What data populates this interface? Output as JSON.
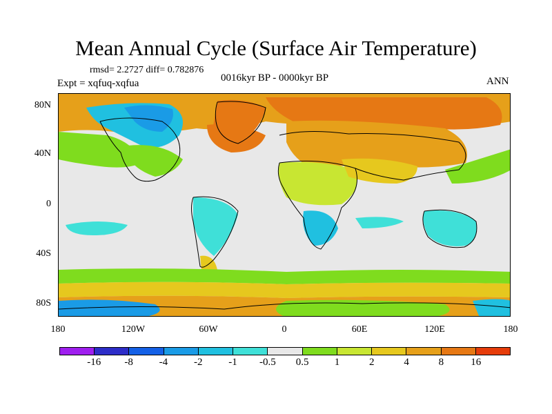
{
  "title": "Mean Annual Cycle (Surface Air Temperature)",
  "stats": "rmsd= 2.2727 diff= 0.782876",
  "experiment": "Expt = xqfuq-xqfua",
  "period": "0016kyr BP - 0000kyr BP",
  "season": "ANN",
  "axes": {
    "y_ticks": [
      "80N",
      "40N",
      "0",
      "40S",
      "80S"
    ],
    "x_ticks": [
      "180",
      "120W",
      "60W",
      "0",
      "60E",
      "120E",
      "180"
    ]
  },
  "colorbar": {
    "colors": [
      "#9f1fef",
      "#2d2dc8",
      "#1460e6",
      "#1a9be6",
      "#20c0e0",
      "#3fe0d8",
      "#e8e8e8",
      "#7fdc1e",
      "#c8e632",
      "#e6c81e",
      "#e6a01a",
      "#e67814",
      "#e63c0a"
    ],
    "labels": [
      "-16",
      "-8",
      "-4",
      "-2",
      "-1",
      "-0.5",
      "0.5",
      "1",
      "2",
      "4",
      "8",
      "16"
    ]
  },
  "map_colors": {
    "neutral": "#e8e8e8",
    "green": "#7fdc1e",
    "yellowgreen": "#c8e632",
    "yellow": "#e6c81e",
    "orange": "#e6a01a",
    "darkorange": "#e67814",
    "red": "#e63c0a",
    "cyan": "#3fe0d8",
    "lightblue": "#20c0e0",
    "blue": "#1a9be6",
    "deepblue": "#1460e6"
  }
}
